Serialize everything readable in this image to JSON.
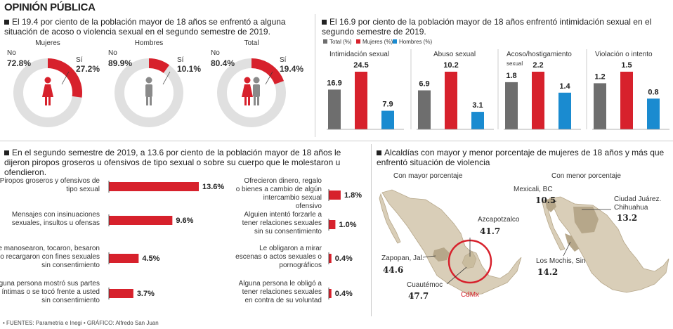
{
  "header": {
    "title": "OPINIÓN PÚBLICA"
  },
  "colors": {
    "total": "#6e6e6e",
    "mujeres": "#d7212c",
    "hombres": "#1a8bd0",
    "map_fill": "#d9ceb8",
    "map_dark": "#b6a78a",
    "map_shade": "#c3b391"
  },
  "sections": {
    "donuts_headline": "El 19.4 por ciento de la población mayor de 18 años se enfrentó a alguna situación de acoso o violencia sexual en el segundo semestre de 2019.",
    "bars_headline": "El 16.9 por ciento de la población mayor de 18 años enfrentó intimidación sexual en el segundo semestre de 2019.",
    "hbars_headline": "En el segundo semestre de 2019, a 13.6 por ciento de la población mayor de 18 años le dijeron piropos groseros u ofensivos de tipo sexual o sobre su cuerpo que le molestaron u ofendieron.",
    "map_headline": "Alcaldías con mayor y menor porcentaje de mujeres de 18 años y más que enfrentó situación de violencia"
  },
  "legend": {
    "total": "Total (%)",
    "mujeres": "Mujeres (%)",
    "hombres": "Hombres (%)"
  },
  "donuts": [
    {
      "title": "Mujeres",
      "no_label": "No",
      "no_value": "72.8%",
      "si_label": "Sí",
      "si_value": "27.2%",
      "si_fraction": 0.272,
      "icon": "woman-icon"
    },
    {
      "title": "Hombres",
      "no_label": "No",
      "no_value": "89.9%",
      "si_label": "Sí",
      "si_value": "10.1%",
      "si_fraction": 0.101,
      "icon": "man-icon"
    },
    {
      "title": "Total",
      "no_label": "No",
      "no_value": "80.4%",
      "si_label": "Sí",
      "si_value": "19.4%",
      "si_fraction": 0.194,
      "icon": "couple-icon"
    }
  ],
  "chart_data": [
    {
      "type": "bar",
      "categories": [
        "Intimidación sexual",
        "Abuso sexual",
        "Acoso/hostigamiento sexual",
        "Violación o intento"
      ],
      "series": [
        {
          "name": "Total (%)",
          "values": [
            16.9,
            6.9,
            1.8,
            1.2
          ]
        },
        {
          "name": "Mujeres (%)",
          "values": [
            24.5,
            10.2,
            2.2,
            1.5
          ]
        },
        {
          "name": "Hombres (%)",
          "values": [
            7.9,
            3.1,
            1.4,
            0.8
          ]
        }
      ],
      "labels": [
        [
          "16.9",
          "24.5",
          "7.9"
        ],
        [
          "6.9",
          "10.2",
          "3.1"
        ],
        [
          "1.8",
          "2.2",
          "1.4"
        ],
        [
          "1.2",
          "1.5",
          "0.8"
        ]
      ]
    },
    {
      "type": "bar",
      "orientation": "horizontal",
      "xlim": [
        0,
        13.6
      ],
      "items": [
        {
          "label": "Piropos groseros y ofensivos de tipo sexual",
          "value": 13.6,
          "value_label": "13.6%"
        },
        {
          "label": "Mensajes con insinuaciones sexuales, insultos u ofensas",
          "value": 9.6,
          "value_label": "9.6%"
        },
        {
          "label": "Le manosearon, tocaron, besaron o recargaron con fines sexuales sin consentimiento",
          "value": 4.5,
          "value_label": "4.5%"
        },
        {
          "label": "Alguna persona mostró sus partes íntimas o se tocó frente a usted sin consentimiento",
          "value": 3.7,
          "value_label": "3.7%"
        },
        {
          "label": "Ofrecieron dinero, regalo o bienes a cambio de algún intercambio sexual ofensivo",
          "value": 1.8,
          "value_label": "1.8%"
        },
        {
          "label": "Alguien intentó forzarle a tener relaciones sexuales sin su consentimiento",
          "value": 1.0,
          "value_label": "1.0%"
        },
        {
          "label": "Le obligaron a mirar escenas o actos sexuales o pornográficos",
          "value": 0.4,
          "value_label": "0.4%"
        },
        {
          "label": "Alguna persona le obligó a tener relaciones sexuales en contra de su voluntad",
          "value": 0.4,
          "value_label": "0.4%"
        }
      ]
    }
  ],
  "maps": {
    "mayor_title": "Con mayor porcentaje",
    "menor_title": "Con menor porcentaje",
    "mayor": [
      {
        "name": "Azcapotzalco",
        "value": "41.7"
      },
      {
        "name": "Zapopan, Jal.",
        "value": "44.6"
      },
      {
        "name": "Cuautémoc",
        "value": "47.7"
      }
    ],
    "menor": [
      {
        "name": "Mexicali, BC",
        "value": "10.5"
      },
      {
        "name": "Ciudad Juárez. Chihuahua",
        "value": "13.2"
      },
      {
        "name": "Los Mochis, Sin",
        "value": "14.2"
      }
    ],
    "cdmx_label": "CdMx"
  },
  "footer": "• FUENTES: Parametría e Inegi • GRÁFICO: Alfredo San Juan"
}
